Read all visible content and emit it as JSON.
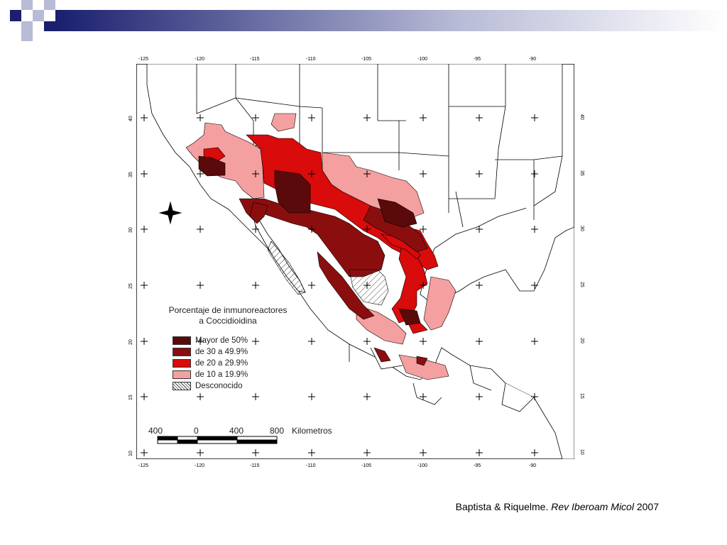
{
  "map": {
    "lon_top": [
      "-125",
      "-120",
      "-115",
      "-110",
      "-105",
      "-100",
      "-95",
      "-90"
    ],
    "lon_bottom": [
      "-125",
      "-120",
      "-115",
      "-110",
      "-105",
      "-100",
      "-95",
      "-90"
    ],
    "lat_left": [
      "40",
      "35",
      "30",
      "25",
      "20",
      "15",
      "10"
    ],
    "lat_right": [
      "40",
      "35",
      "30",
      "25",
      "20",
      "15",
      "10"
    ]
  },
  "legend": {
    "title_line1": "Porcentaje de inmunoreactores",
    "title_line2": "a Coccidioidina",
    "items": [
      {
        "label": "Mayor de 50%",
        "color": "#5a0a0a"
      },
      {
        "label": "de 30 a 49.9%",
        "color": "#8b0e0e"
      },
      {
        "label": "de 20 a 29.9%",
        "color": "#d90b0b"
      },
      {
        "label": "de 10 a 19.9%",
        "color": "#f5a0a0"
      },
      {
        "label": "Desconocido",
        "color": "hatched"
      }
    ]
  },
  "scale": {
    "labels": [
      "400",
      "0",
      "400",
      "800"
    ],
    "unit": "Kilometros"
  },
  "citation": {
    "authors": "Baptista & Riquelme.",
    "journal": "Rev Iberoam Micol",
    "year": "2007"
  }
}
